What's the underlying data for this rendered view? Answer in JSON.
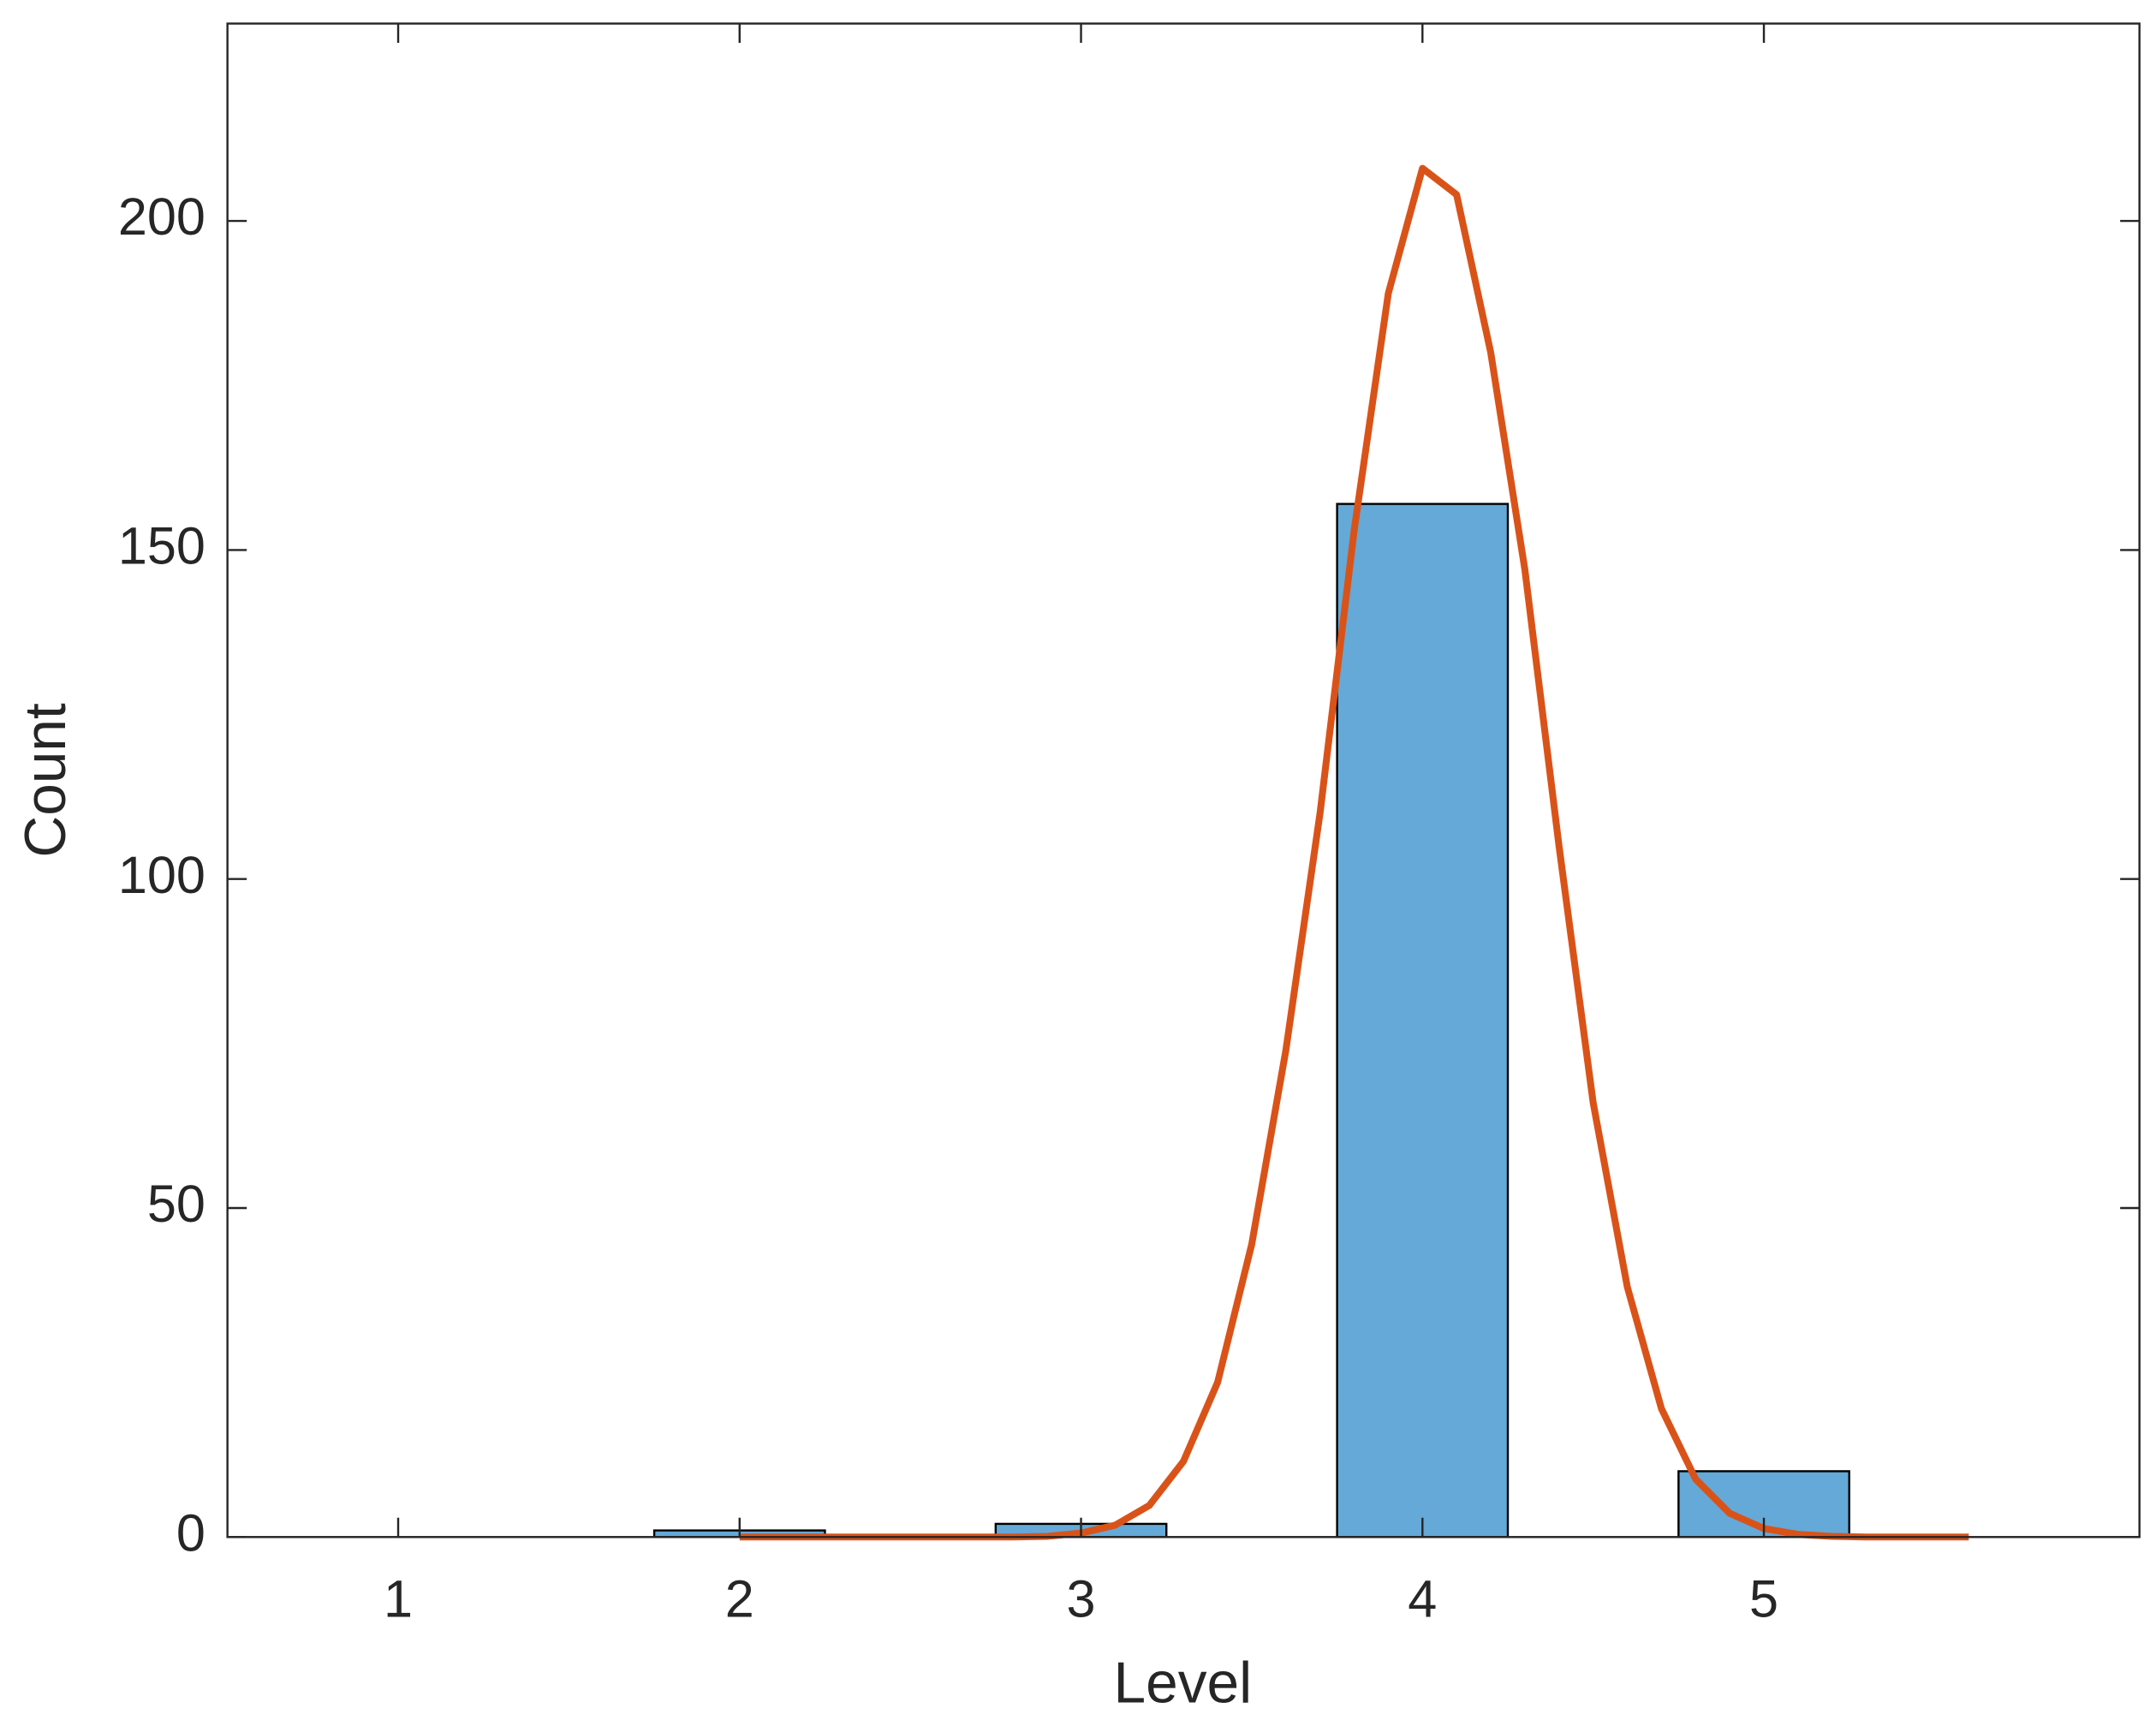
{
  "chart_data": {
    "type": "bar",
    "x_label": "Level",
    "y_label": "Count",
    "xlim": [
      0.5,
      6.1
    ],
    "xticks": [
      1,
      2,
      3,
      4,
      5
    ],
    "ylim": [
      0,
      230
    ],
    "yticks": [
      0,
      50,
      100,
      150,
      200
    ],
    "series": [
      {
        "type": "bar",
        "color": "#64a9d7",
        "x": [
          1,
          2,
          3,
          4,
          5
        ],
        "values": [
          0,
          1,
          2,
          157,
          10
        ]
      },
      {
        "type": "line",
        "color": "#d95319",
        "x": [
          2.0,
          2.1,
          2.2,
          2.3,
          2.4,
          2.5,
          2.6,
          2.7,
          2.8,
          2.9,
          3.0,
          3.1,
          3.2,
          3.3,
          3.4,
          3.5,
          3.6,
          3.7,
          3.8,
          3.9,
          4.0,
          4.1,
          4.2,
          4.3,
          4.4,
          4.5,
          4.6,
          4.7,
          4.8,
          4.9,
          5.0,
          5.1,
          5.2,
          5.3,
          5.4,
          5.5,
          5.6
        ],
        "values": [
          0,
          0,
          0,
          0,
          0,
          0,
          0,
          0,
          0,
          0.1,
          0.6,
          1.8,
          4.8,
          11.5,
          23.5,
          44.5,
          74,
          110,
          153,
          189,
          208,
          204,
          180,
          147,
          105,
          66,
          38,
          19.5,
          8.8,
          3.6,
          1.3,
          0.4,
          0.1,
          0,
          0,
          0,
          0
        ]
      }
    ]
  }
}
